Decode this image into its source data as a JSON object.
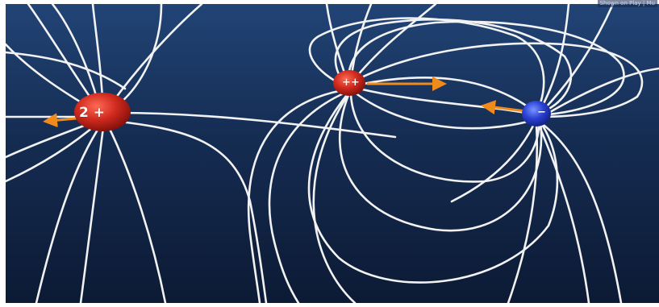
{
  "overlay": {
    "text": "Shown on Play | Mu"
  },
  "charges": [
    {
      "label": "2 +",
      "color": "#c0201a"
    },
    {
      "label": "++",
      "color": "#c0201a"
    },
    {
      "label": "−",
      "color": "#2035c8"
    }
  ],
  "colors": {
    "background_top": "#1d3b66",
    "background_bottom": "#0d1c38",
    "field_lines": "#f4f4f4",
    "force_arrows": "#f08a1a"
  }
}
